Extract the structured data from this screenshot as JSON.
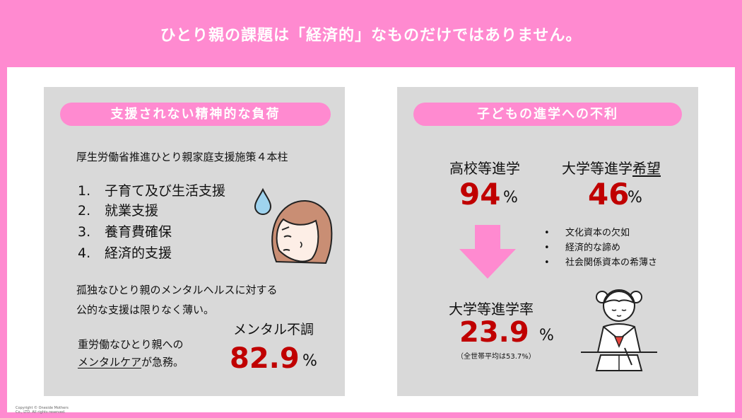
{
  "slide": {
    "title": "ひとり親の課題は「経済的」なものだけではありません。",
    "accent_color": "#FF8AD0",
    "highlight_color": "#C00000",
    "copyright_line1": "Copyright © Oneside Mothers",
    "copyright_line2": "Co., LTD. All rights reserved."
  },
  "left_panel": {
    "heading": "支援されない精神的な負荷",
    "policy_title": "厚生労働省推進ひとり親家庭支援施策４本柱",
    "policies": [
      {
        "num": "1.",
        "label": "子育て及び生活支援"
      },
      {
        "num": "2.",
        "label": "就業支援"
      },
      {
        "num": "3.",
        "label": "養育費確保"
      },
      {
        "num": "4.",
        "label": "経済的支援"
      }
    ],
    "note_line1": "孤独なひとり親のメンタルヘルスに対する",
    "note_line2": "公的な支援は限りなく薄い。",
    "care_line1": "重労働なひとり親への",
    "care_emphasis": "メンタルケア",
    "care_suffix": "が急務。",
    "stat_label": "メンタル不調",
    "stat_value": "82.9",
    "stat_unit": "%",
    "illustration_icon": "worried-mother-icon"
  },
  "right_panel": {
    "heading": "子どもの進学への不利",
    "high_school": {
      "label": "高校等進学",
      "value": "94",
      "unit": "%"
    },
    "university_hope": {
      "label_prefix": "大学等進学",
      "label_emphasis": "希望",
      "value": "46",
      "unit": "%"
    },
    "reasons": [
      "文化資本の欠如",
      "経済的な諦め",
      "社会関係資本の希薄さ"
    ],
    "arrow_icon": "down-arrow-icon",
    "university_rate": {
      "label": "大学等進学率",
      "value": "23.9",
      "unit": "%",
      "note": "（全世帯平均は53.7%）"
    },
    "illustration_icon": "studying-girl-icon"
  }
}
